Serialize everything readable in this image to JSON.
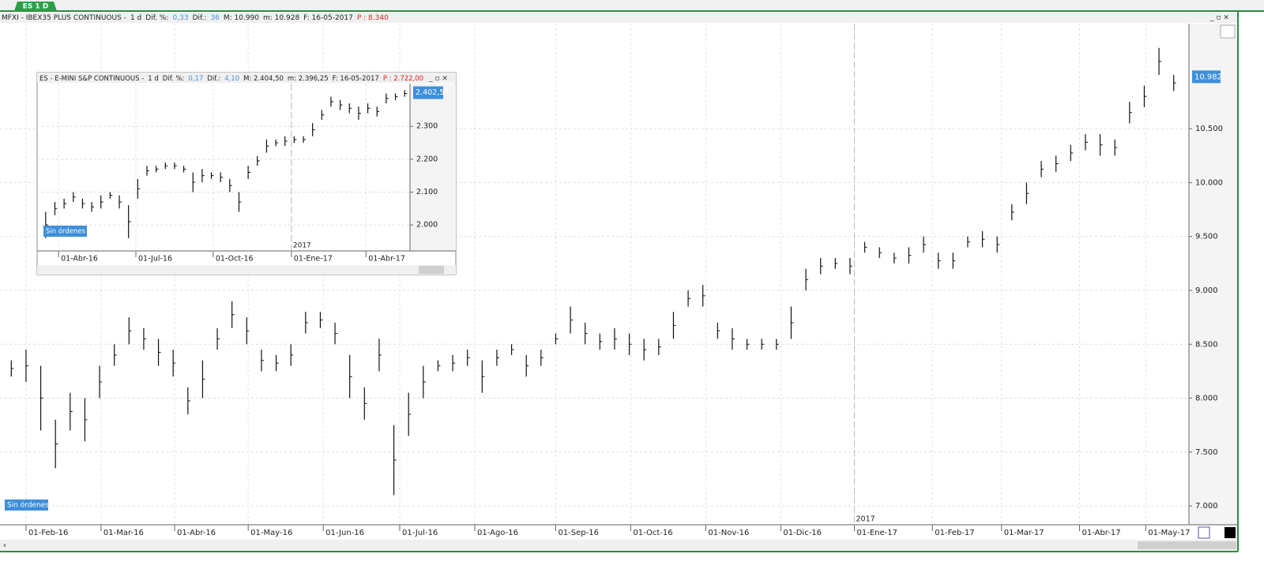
{
  "tab": "ES 1 D",
  "chart_data": [
    {
      "type": "hilo",
      "header": [
        {
          "text": "MFXI - IBEX35 PLUS CONTINUOUS -"
        },
        {
          "text": "1 d"
        },
        {
          "text": "Dif. %:"
        },
        {
          "text": "0,33",
          "color": "#4a90d9"
        },
        {
          "text": "Dif.:"
        },
        {
          "text": "36",
          "color": "#4a90d9"
        },
        {
          "text": "M: 10.990"
        },
        {
          "text": "m: 10.928"
        },
        {
          "text": "F: 16-05-2017"
        },
        {
          "text": "P : 8.340",
          "color": "#e02020"
        }
      ],
      "color": "#111111",
      "high": [
        8350,
        8450,
        8300,
        7800,
        8050,
        8000,
        8300,
        8500,
        8750,
        8650,
        8550,
        8450,
        8100,
        8350,
        8650,
        8900,
        8750,
        8450,
        8400,
        8500,
        8800,
        8800,
        8700,
        8400,
        8100,
        8550,
        7750,
        8050,
        8300,
        8350,
        8400,
        8450,
        8350,
        8450,
        8500,
        8400,
        8450,
        8600,
        8850,
        8700,
        8600,
        8650,
        8600,
        8550,
        8550,
        8800,
        9000,
        9050,
        8700,
        8650,
        8550,
        8550,
        8550,
        8850,
        9200,
        9300,
        9300,
        9300,
        9450,
        9400,
        9350,
        9400,
        9500,
        9350,
        9350,
        9500,
        9550,
        9500,
        9800,
        10000,
        10200,
        10250,
        10350,
        10450,
        10450,
        10400,
        10750,
        10900,
        11250,
        11000
      ],
      "low": [
        8200,
        8150,
        7700,
        7350,
        7700,
        7600,
        8000,
        8300,
        8500,
        8450,
        8300,
        8200,
        7850,
        8000,
        8450,
        8650,
        8500,
        8250,
        8250,
        8300,
        8600,
        8650,
        8500,
        8000,
        7800,
        8250,
        7100,
        7650,
        8000,
        8250,
        8250,
        8300,
        8050,
        8300,
        8400,
        8200,
        8300,
        8500,
        8600,
        8500,
        8450,
        8450,
        8400,
        8350,
        8400,
        8550,
        8850,
        8850,
        8550,
        8450,
        8450,
        8450,
        8450,
        8550,
        9000,
        9150,
        9200,
        9150,
        9350,
        9300,
        9250,
        9250,
        9350,
        9200,
        9200,
        9400,
        9400,
        9350,
        9650,
        9800,
        10050,
        10100,
        10200,
        10300,
        10250,
        10250,
        10550,
        10700,
        11000,
        10850
      ],
      "xlim": [
        0,
        80
      ],
      "ylim": [
        6825,
        11475
      ],
      "xticks": [
        {
          "value": 1.5,
          "label": "01-Feb-16"
        },
        {
          "value": 6.6,
          "label": "01-Mar-16"
        },
        {
          "value": 11.6,
          "label": "01-Abr-16"
        },
        {
          "value": 16.6,
          "label": "01-May-16"
        },
        {
          "value": 21.7,
          "label": "01-Jun-16"
        },
        {
          "value": 26.9,
          "label": "01-Jul-16"
        },
        {
          "value": 32.0,
          "label": "01-Ago-16"
        },
        {
          "value": 37.5,
          "label": "01-Sep-16"
        },
        {
          "value": 42.6,
          "label": "01-Oct-16"
        },
        {
          "value": 47.7,
          "label": "01-Nov-16"
        },
        {
          "value": 52.8,
          "label": "01-Dic-16"
        },
        {
          "value": 57.8,
          "label": "01-Ene-17"
        },
        {
          "value": 63.1,
          "label": "01-Feb-17"
        },
        {
          "value": 67.8,
          "label": "01-Mar-17"
        },
        {
          "value": 73.1,
          "label": "01-Abr-17"
        },
        {
          "value": 77.6,
          "label": "01-May-17"
        }
      ],
      "yticks": [
        {
          "value": 7000,
          "label": "7.000"
        },
        {
          "value": 7500,
          "label": "7.500"
        },
        {
          "value": 8000,
          "label": "8.000"
        },
        {
          "value": 8500,
          "label": "8.500"
        },
        {
          "value": 9000,
          "label": "9.000"
        },
        {
          "value": 9500,
          "label": "9.500"
        },
        {
          "value": 10000,
          "label": "10.000"
        },
        {
          "value": 10500,
          "label": "10.500"
        }
      ],
      "grid": true,
      "last_price": {
        "value": 10982,
        "label": "10.982"
      },
      "year_marker": {
        "value": 57.8,
        "label": "2017"
      },
      "orders_label": "Sin órdenes"
    },
    {
      "type": "hilo",
      "header": [
        {
          "text": "ES - E-MINI S&P CONTINUOUS -"
        },
        {
          "text": "1 d"
        },
        {
          "text": "Dif. %:"
        },
        {
          "text": "0,17",
          "color": "#4a90d9"
        },
        {
          "text": "Dif.:"
        },
        {
          "text": "4,10",
          "color": "#4a90d9"
        },
        {
          "text": "M: 2.404,50"
        },
        {
          "text": "m: 2.396,25"
        },
        {
          "text": "F: 16-05-2017"
        },
        {
          "text": "P : 2.722,00",
          "color": "#e02020"
        }
      ],
      "color": "#111111",
      "high": [
        2040,
        2070,
        2080,
        2100,
        2080,
        2070,
        2090,
        2100,
        2090,
        2060,
        2140,
        2180,
        2180,
        2190,
        2190,
        2180,
        2160,
        2170,
        2160,
        2160,
        2140,
        2100,
        2180,
        2210,
        2260,
        2260,
        2270,
        2270,
        2270,
        2310,
        2350,
        2390,
        2380,
        2370,
        2360,
        2370,
        2360,
        2400,
        2400,
        2410
      ],
      "low": [
        1960,
        2030,
        2050,
        2070,
        2050,
        2040,
        2050,
        2080,
        2050,
        1960,
        2080,
        2150,
        2160,
        2170,
        2170,
        2160,
        2100,
        2130,
        2140,
        2130,
        2100,
        2040,
        2140,
        2180,
        2220,
        2240,
        2240,
        2250,
        2250,
        2270,
        2320,
        2360,
        2350,
        2340,
        2320,
        2340,
        2330,
        2370,
        2380,
        2390
      ],
      "xlim": [
        0,
        40
      ],
      "ylim": [
        1921,
        2430
      ],
      "xticks": [
        {
          "value": 1.9,
          "label": "01-Abr-16"
        },
        {
          "value": 10.3,
          "label": "01-Jul-16"
        },
        {
          "value": 18.7,
          "label": "01-Oct-16"
        },
        {
          "value": 27.2,
          "label": "01-Ene-17"
        },
        {
          "value": 35.3,
          "label": "01-Abr-17"
        }
      ],
      "yticks": [
        {
          "value": 2000,
          "label": "2.000"
        },
        {
          "value": 2100,
          "label": "2.100"
        },
        {
          "value": 2200,
          "label": "2.200"
        },
        {
          "value": 2300,
          "label": "2.300"
        }
      ],
      "grid": true,
      "last_price": {
        "value": 2402.5,
        "label": "2.402,5"
      },
      "year_marker": {
        "value": 27.2,
        "label": "2017"
      },
      "orders_label": "Sin órdenes"
    }
  ]
}
